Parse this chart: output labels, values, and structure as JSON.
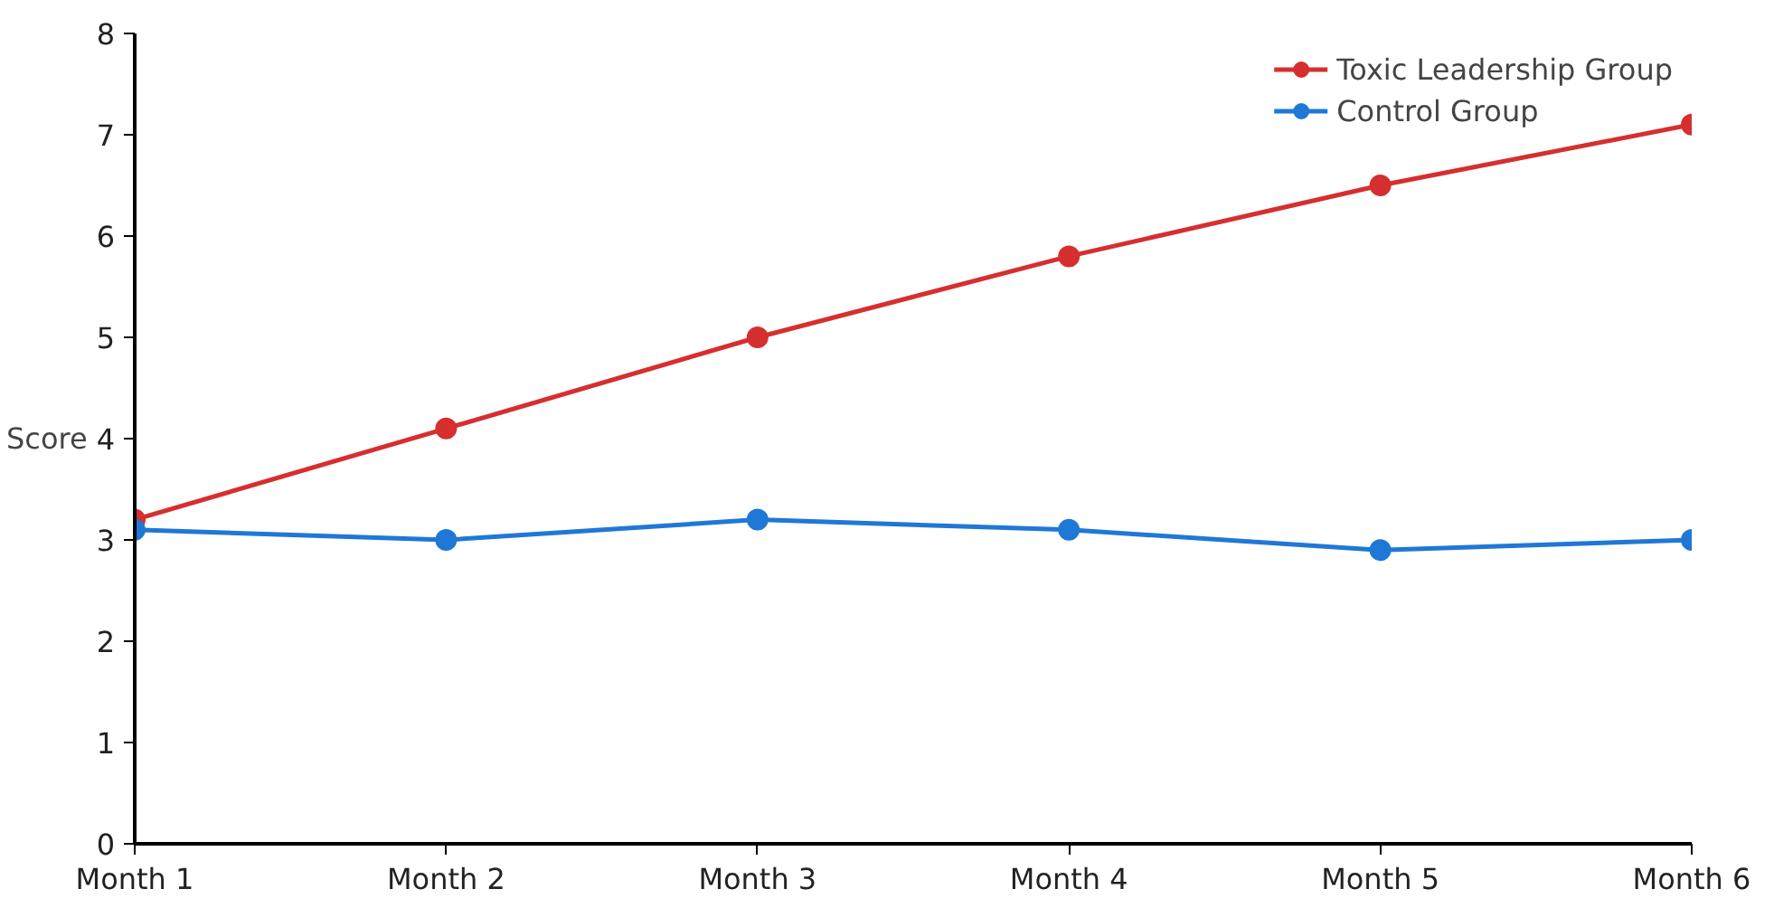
{
  "chart_data": {
    "type": "line",
    "categories": [
      "Month 1",
      "Month 2",
      "Month 3",
      "Month 4",
      "Month 5",
      "Month 6"
    ],
    "ylabel": "Score",
    "ylim": [
      0,
      8
    ],
    "yticks": [
      0,
      1,
      2,
      3,
      4,
      5,
      6,
      7,
      8
    ],
    "grid": false,
    "legend": "top right",
    "marker": "circle",
    "line_style": "solid",
    "series": [
      {
        "name": "Toxic Leadership Group",
        "color": "#d62f2f",
        "values": [
          3.2,
          4.1,
          5.0,
          5.8,
          6.5,
          7.1
        ]
      },
      {
        "name": "Control Group",
        "color": "#1f78d6",
        "values": [
          3.1,
          3.0,
          3.2,
          3.1,
          2.9,
          3.0
        ]
      }
    ]
  }
}
